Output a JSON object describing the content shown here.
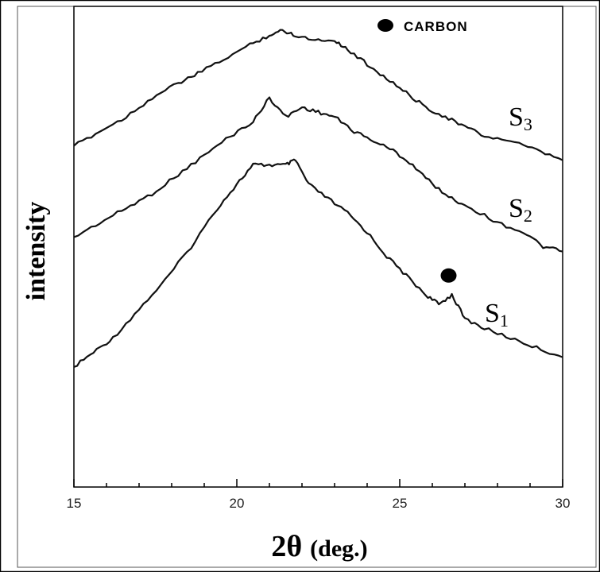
{
  "chart_data": {
    "type": "line",
    "xlabel_main": "2θ",
    "xlabel_unit": "(deg.)",
    "ylabel": "intensity",
    "xlim": [
      15,
      30
    ],
    "xticks": [
      15,
      20,
      25,
      30
    ],
    "ylim": [
      0,
      100
    ],
    "legend": {
      "marker": "filled-dot",
      "label": "CARBON",
      "placement": "top"
    },
    "series": [
      {
        "name": "S1",
        "label_main": "S",
        "label_sub": "1",
        "points": [
          [
            15.0,
            25
          ],
          [
            15.6,
            28
          ],
          [
            16.2,
            31
          ],
          [
            17.0,
            37
          ],
          [
            17.8,
            43
          ],
          [
            18.6,
            50
          ],
          [
            19.4,
            58
          ],
          [
            20.0,
            63
          ],
          [
            20.5,
            67
          ],
          [
            21.0,
            67
          ],
          [
            21.5,
            67
          ],
          [
            21.8,
            68
          ],
          [
            22.2,
            63
          ],
          [
            22.8,
            60
          ],
          [
            23.4,
            57
          ],
          [
            24.0,
            53
          ],
          [
            24.6,
            48
          ],
          [
            25.2,
            44
          ],
          [
            25.8,
            40
          ],
          [
            26.2,
            38
          ],
          [
            26.6,
            40
          ],
          [
            27.0,
            35
          ],
          [
            27.6,
            33
          ],
          [
            28.4,
            31
          ],
          [
            29.2,
            29
          ],
          [
            30.0,
            27
          ]
        ],
        "markers": [
          {
            "x": 26.5,
            "y": 44,
            "label": "CARBON"
          }
        ]
      },
      {
        "name": "S2",
        "label_main": "S",
        "label_sub": "2",
        "points": [
          [
            15.0,
            52
          ],
          [
            15.8,
            55
          ],
          [
            16.6,
            58
          ],
          [
            17.4,
            61
          ],
          [
            18.2,
            65
          ],
          [
            19.0,
            69
          ],
          [
            19.8,
            73
          ],
          [
            20.5,
            76
          ],
          [
            21.0,
            81
          ],
          [
            21.5,
            77
          ],
          [
            22.0,
            79
          ],
          [
            22.5,
            78
          ],
          [
            23.0,
            77
          ],
          [
            23.6,
            74
          ],
          [
            24.2,
            72
          ],
          [
            24.8,
            70
          ],
          [
            25.4,
            67
          ],
          [
            26.0,
            63
          ],
          [
            26.6,
            60
          ],
          [
            27.2,
            58
          ],
          [
            28.0,
            55
          ],
          [
            28.8,
            53
          ],
          [
            29.4,
            50
          ],
          [
            30.0,
            49
          ]
        ],
        "markers": []
      },
      {
        "name": "S3",
        "label_main": "S",
        "label_sub": "3",
        "points": [
          [
            15.0,
            71
          ],
          [
            15.8,
            74
          ],
          [
            16.6,
            77
          ],
          [
            17.4,
            81
          ],
          [
            18.2,
            84
          ],
          [
            18.8,
            86
          ],
          [
            19.6,
            89
          ],
          [
            20.4,
            92
          ],
          [
            21.0,
            94
          ],
          [
            21.4,
            95
          ],
          [
            21.8,
            94
          ],
          [
            22.4,
            93
          ],
          [
            23.0,
            93
          ],
          [
            23.4,
            91
          ],
          [
            24.0,
            88
          ],
          [
            24.6,
            85
          ],
          [
            25.2,
            82
          ],
          [
            25.8,
            79
          ],
          [
            26.4,
            77
          ],
          [
            27.0,
            75
          ],
          [
            27.6,
            73
          ],
          [
            28.4,
            72
          ],
          [
            29.2,
            70
          ],
          [
            30.0,
            68
          ]
        ],
        "markers": []
      }
    ]
  }
}
